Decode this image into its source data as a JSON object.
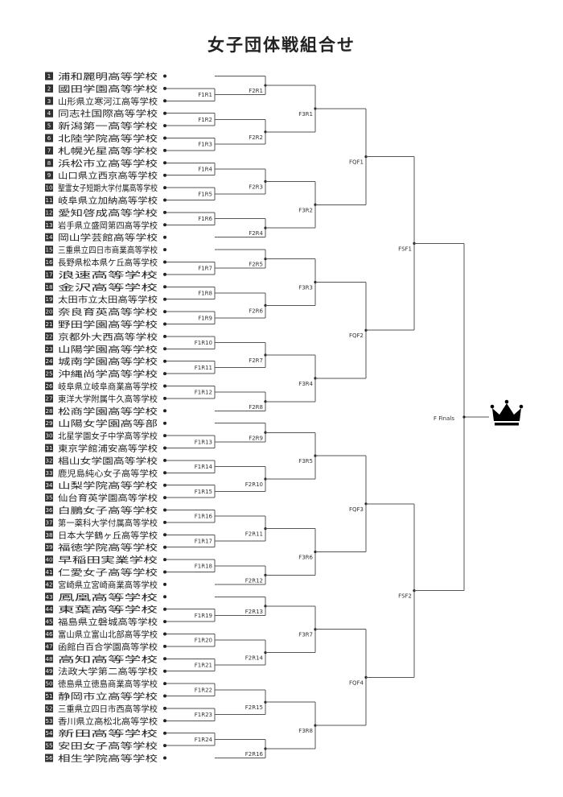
{
  "title": "女子団体戦組合せ",
  "teams": [
    "浦和麗明高等学校",
    "國田学園高等学校",
    "山形県立寒河江高等学校",
    "同志社国際高等学校",
    "新潟第一高等学校",
    "北陸学院高等学校",
    "札幌光星高等学校",
    "浜松市立高等学校",
    "山口県立西京高等学校",
    "聖霊女子短期大学付属高等学校",
    "岐阜県立加納高等学校",
    "愛知啓成高等学校",
    "岩手県立盛岡第四高等学校",
    "岡山学芸館高等学校",
    "三重県立四日市商業高等学校",
    "長野県松本県ケ丘高等学校",
    "浪速高等学校",
    "金沢高等学校",
    "太田市立太田高等学校",
    "奈良育英高等学校",
    "野田学園高等学校",
    "京都外大西高等学校",
    "山陽学園高等学校",
    "城南学園高等学校",
    "沖縄尚学高等学校",
    "岐阜県立岐阜商業高等学校",
    "東洋大学附属牛久高等学校",
    "松商学園高等学校",
    "山陽女学園高等部",
    "北星学園女子中学高等学校",
    "東京学館浦安高等学校",
    "椙山女学園高等学校",
    "鹿児島純心女子高等学校",
    "山梨学院高等学校",
    "仙台育英学園高等学校",
    "白鵬女子高等学校",
    "第一薬科大学付属高等学校",
    "日本大学鶴ヶ丘高等学校",
    "福徳学院高等学校",
    "早稲田実業学校",
    "仁愛女子高等学校",
    "宮崎県立宮崎商業高等学校",
    "鳳凰高等学校",
    "東葉高等学校",
    "福島県立磐城高等学校",
    "富山県立富山北部高等学校",
    "函館白百合学園高等学校",
    "高知高等学校",
    "法政大学第二高等学校",
    "徳島県立徳島商業高等学校",
    "静岡市立高等学校",
    "三重県立四日市西高等学校",
    "香川県立高松北高等学校",
    "新田高等学校",
    "安田女子高等学校",
    "相生学院高等学校"
  ],
  "matches": {
    "F1R1": "F1R1",
    "F1R2": "F1R2",
    "F1R3": "F1R3",
    "F1R4": "F1R4",
    "F1R5": "F1R5",
    "F1R6": "F1R6",
    "F1R7": "F1R7",
    "F1R8": "F1R8",
    "F1R9": "F1R9",
    "F1R10": "F1R10",
    "F1R11": "F1R11",
    "F1R12": "F1R12",
    "F1R13": "F1R13",
    "F1R14": "F1R14",
    "F1R15": "F1R15",
    "F1R16": "F1R16",
    "F1R17": "F1R17",
    "F1R18": "F1R18",
    "F1R19": "F1R19",
    "F1R20": "F1R20",
    "F1R21": "F1R21",
    "F1R22": "F1R22",
    "F1R23": "F1R23",
    "F1R24": "F1R24",
    "F2R1": "F2R1",
    "F2R2": "F2R2",
    "F2R3": "F2R3",
    "F2R4": "F2R4",
    "F2R5": "F2R5",
    "F2R6": "F2R6",
    "F2R7": "F2R7",
    "F2R8": "F2R8",
    "F2R9": "F2R9",
    "F2R10": "F2R10",
    "F2R11": "F2R11",
    "F2R12": "F2R12",
    "F2R13": "F2R13",
    "F2R14": "F2R14",
    "F2R15": "F2R15",
    "F2R16": "F2R16",
    "F3R1": "F3R1",
    "F3R2": "F3R2",
    "F3R3": "F3R3",
    "F3R4": "F3R4",
    "F3R5": "F3R5",
    "F3R6": "F3R6",
    "F3R7": "F3R7",
    "F3R8": "F3R8",
    "FQF1": "FQF1",
    "FQF2": "FQF2",
    "FQF3": "FQF3",
    "FQF4": "FQF4",
    "FSF1": "FSF1",
    "FSF2": "FSF2",
    "F_Finals": "F Finals"
  },
  "icons": {
    "champion": "crown-icon"
  },
  "colors": {
    "line": "#555555",
    "badge": "#333333"
  }
}
